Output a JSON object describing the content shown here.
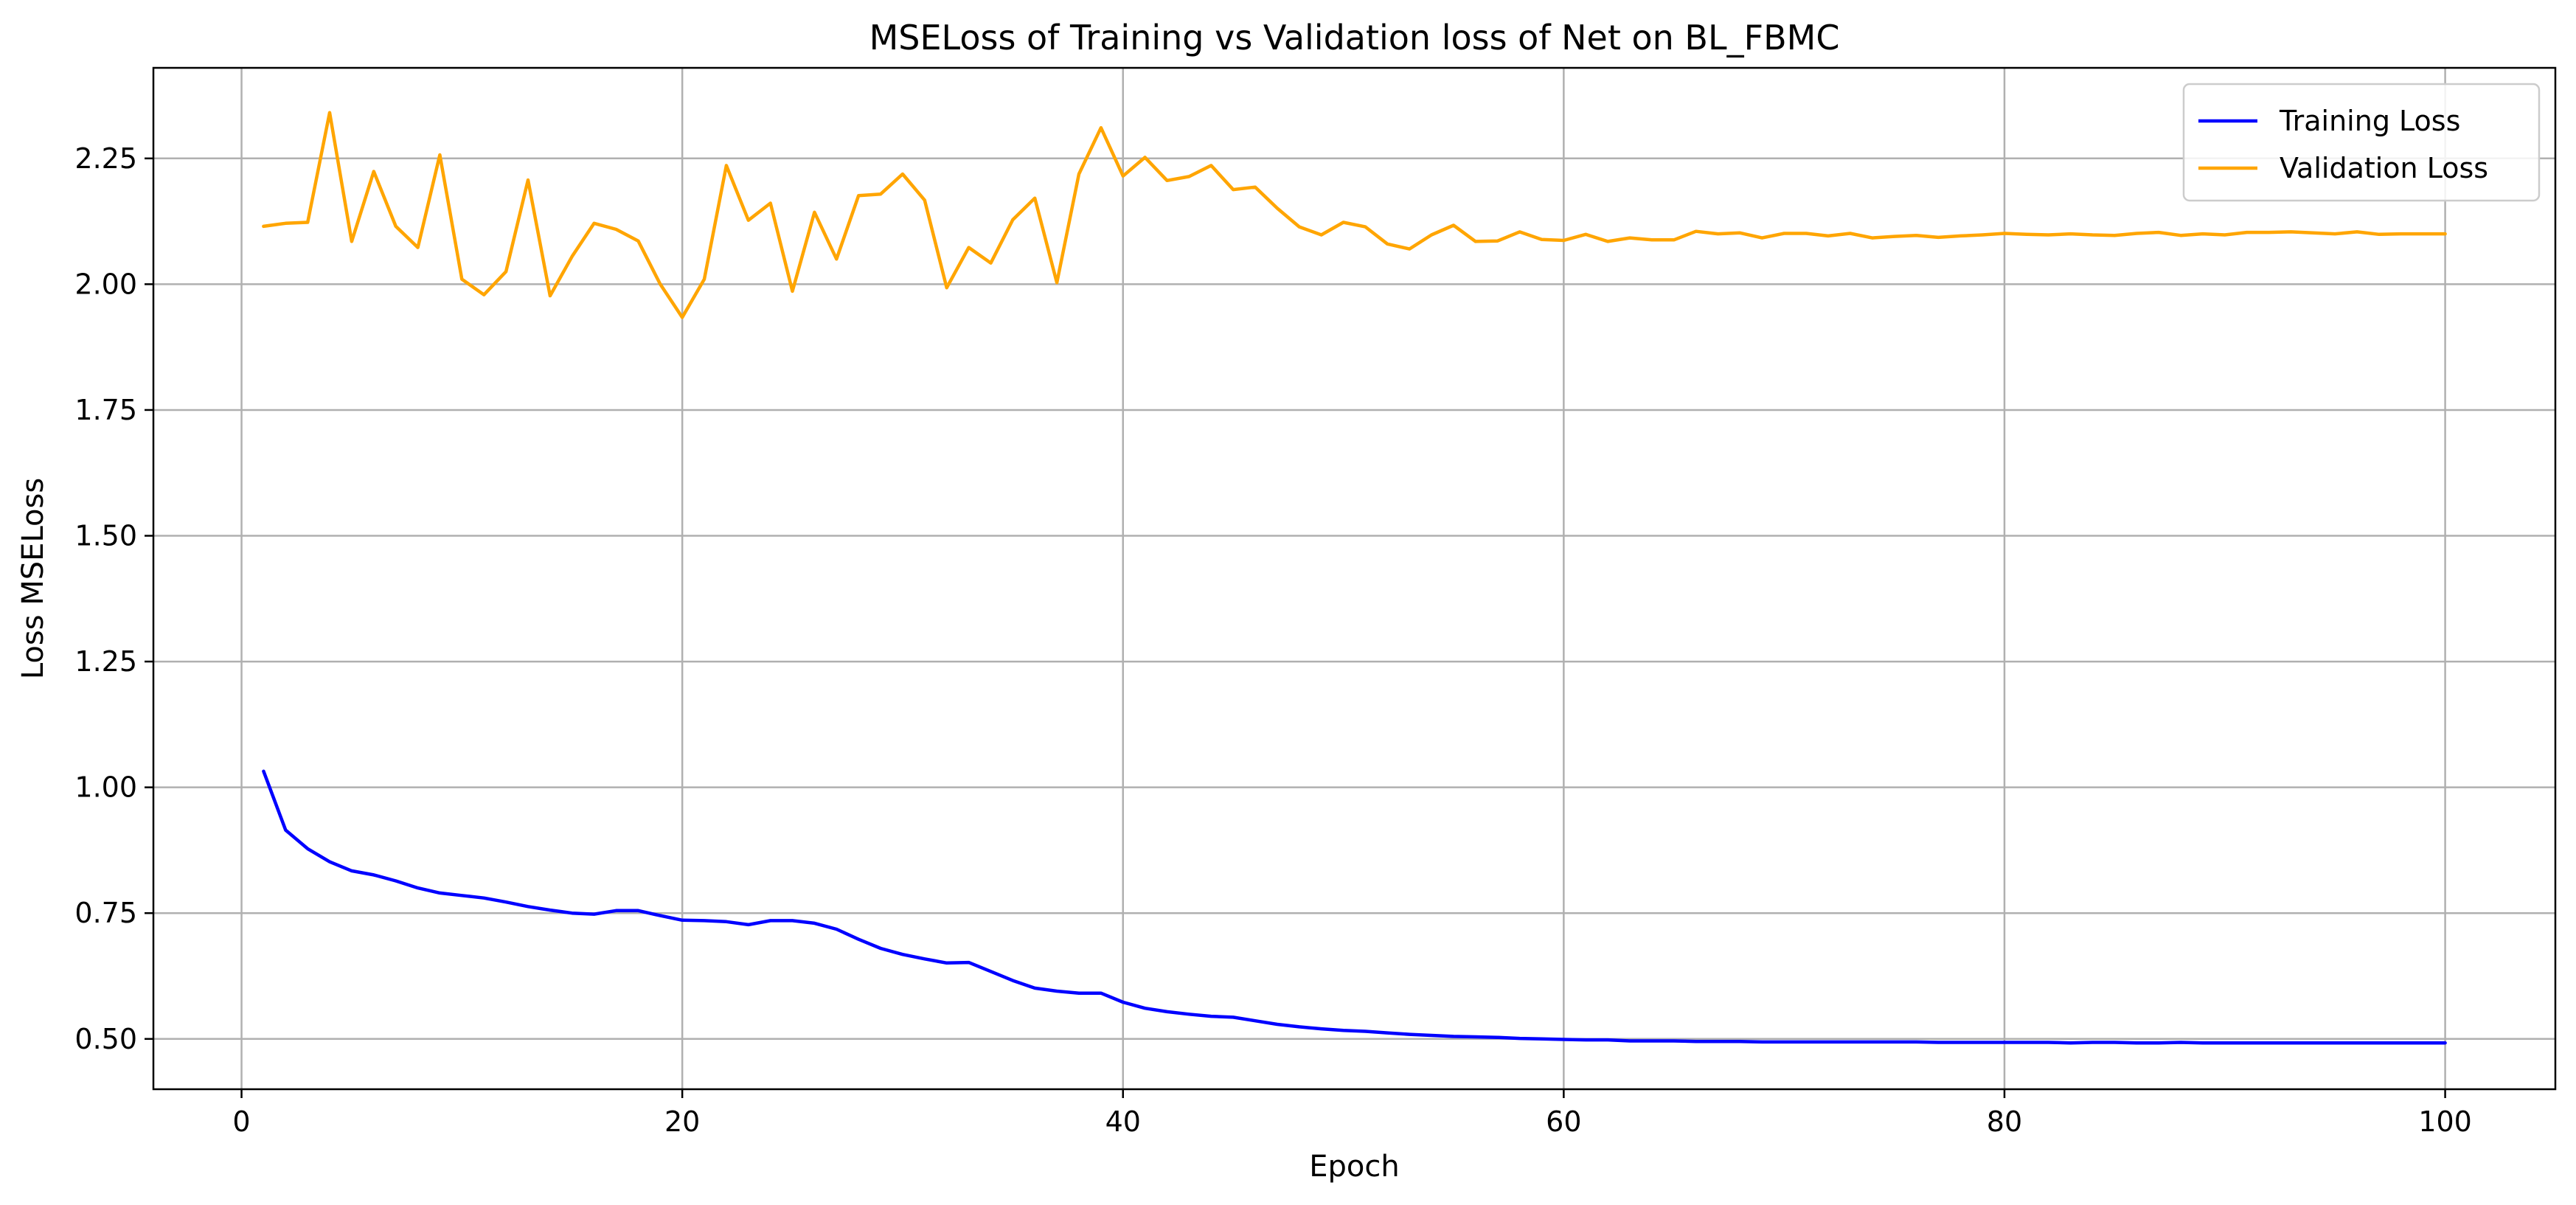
{
  "chart_data": {
    "type": "line",
    "title": "MSELoss of Training vs Validation loss of Net on BL_FBMC",
    "xlabel": "Epoch",
    "ylabel": "Loss MSELoss",
    "xlim": [
      -4,
      105
    ],
    "ylim": [
      0.4,
      2.43
    ],
    "xticks": [
      0,
      20,
      40,
      60,
      80,
      100
    ],
    "xtick_labels": [
      "0",
      "20",
      "40",
      "60",
      "80",
      "100"
    ],
    "yticks": [
      0.5,
      0.75,
      1.0,
      1.25,
      1.5,
      1.75,
      2.0,
      2.25
    ],
    "ytick_labels": [
      "0.50",
      "0.75",
      "1.00",
      "1.25",
      "1.50",
      "1.75",
      "2.00",
      "2.25"
    ],
    "grid": true,
    "legend_position": "top-right",
    "colors": {
      "training": "#0000ff",
      "validation": "#ffa500",
      "grid": "#b0b0b0"
    },
    "x": [
      1,
      2,
      3,
      4,
      5,
      6,
      7,
      8,
      9,
      10,
      11,
      12,
      13,
      14,
      15,
      16,
      17,
      18,
      19,
      20,
      21,
      22,
      23,
      24,
      25,
      26,
      27,
      28,
      29,
      30,
      31,
      32,
      33,
      34,
      35,
      36,
      37,
      38,
      39,
      40,
      41,
      42,
      43,
      44,
      45,
      46,
      47,
      48,
      49,
      50,
      51,
      52,
      53,
      54,
      55,
      56,
      57,
      58,
      59,
      60,
      61,
      62,
      63,
      64,
      65,
      66,
      67,
      68,
      69,
      70,
      71,
      72,
      73,
      74,
      75,
      76,
      77,
      78,
      79,
      80,
      81,
      82,
      83,
      84,
      85,
      86,
      87,
      88,
      89,
      90,
      91,
      92,
      93,
      94,
      95,
      96,
      97,
      98,
      99,
      100
    ],
    "series": [
      {
        "name": "Training Loss",
        "color": "#0000ff",
        "values": [
          1.032,
          0.915,
          0.878,
          0.852,
          0.834,
          0.826,
          0.814,
          0.8,
          0.79,
          0.785,
          0.78,
          0.772,
          0.763,
          0.756,
          0.75,
          0.748,
          0.755,
          0.755,
          0.745,
          0.736,
          0.735,
          0.733,
          0.727,
          0.735,
          0.735,
          0.73,
          0.718,
          0.698,
          0.68,
          0.668,
          0.659,
          0.651,
          0.652,
          0.634,
          0.616,
          0.601,
          0.595,
          0.591,
          0.591,
          0.573,
          0.561,
          0.554,
          0.549,
          0.545,
          0.543,
          0.536,
          0.529,
          0.524,
          0.52,
          0.517,
          0.515,
          0.512,
          0.509,
          0.507,
          0.505,
          0.504,
          0.503,
          0.501,
          0.5,
          0.499,
          0.498,
          0.498,
          0.496,
          0.496,
          0.496,
          0.495,
          0.495,
          0.495,
          0.494,
          0.494,
          0.494,
          0.494,
          0.494,
          0.494,
          0.494,
          0.494,
          0.493,
          0.493,
          0.493,
          0.493,
          0.493,
          0.493,
          0.492,
          0.493,
          0.493,
          0.492,
          0.492,
          0.493,
          0.492,
          0.492,
          0.492,
          0.492,
          0.492,
          0.492,
          0.492,
          0.492,
          0.492,
          0.492,
          0.492,
          0.492
        ]
      },
      {
        "name": "Validation Loss",
        "color": "#ffa500",
        "values": [
          2.115,
          2.121,
          2.123,
          2.341,
          2.085,
          2.224,
          2.115,
          2.073,
          2.257,
          2.01,
          1.979,
          2.025,
          2.207,
          1.977,
          2.055,
          2.121,
          2.109,
          2.086,
          2.0,
          1.934,
          2.01,
          2.236,
          2.127,
          2.161,
          1.986,
          2.143,
          2.05,
          2.176,
          2.179,
          2.219,
          2.167,
          1.993,
          2.073,
          2.042,
          2.128,
          2.171,
          2.003,
          2.219,
          2.311,
          2.215,
          2.252,
          2.206,
          2.214,
          2.236,
          2.188,
          2.193,
          2.151,
          2.114,
          2.098,
          2.123,
          2.114,
          2.08,
          2.07,
          2.098,
          2.117,
          2.085,
          2.086,
          2.104,
          2.089,
          2.087,
          2.099,
          2.085,
          2.092,
          2.088,
          2.088,
          2.105,
          2.1,
          2.102,
          2.092,
          2.101,
          2.101,
          2.096,
          2.101,
          2.092,
          2.095,
          2.097,
          2.093,
          2.096,
          2.098,
          2.101,
          2.099,
          2.098,
          2.1,
          2.098,
          2.097,
          2.101,
          2.103,
          2.097,
          2.1,
          2.098,
          2.103,
          2.103,
          2.104,
          2.102,
          2.1,
          2.104,
          2.099,
          2.1,
          2.1,
          2.1
        ]
      }
    ]
  }
}
